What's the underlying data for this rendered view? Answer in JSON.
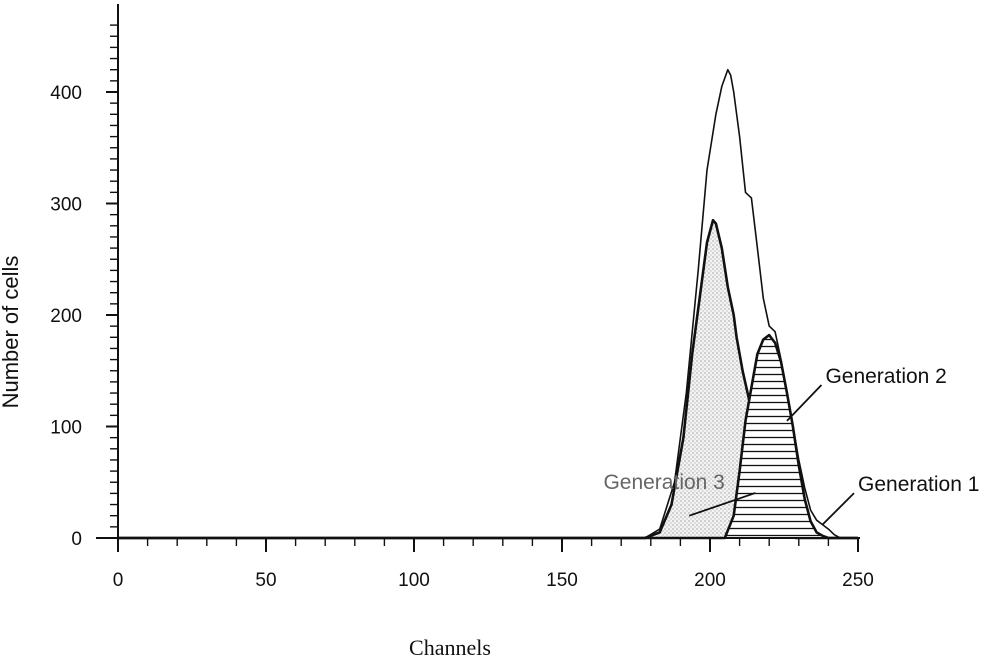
{
  "chart_data": {
    "type": "area",
    "xlabel": "Channels",
    "ylabel": "Number of cells",
    "xlim": [
      0,
      250
    ],
    "ylim": [
      0,
      470
    ],
    "x_ticks": [
      0,
      50,
      100,
      150,
      200,
      250
    ],
    "y_ticks": [
      0,
      100,
      200,
      300,
      400
    ],
    "grid": false,
    "series": [
      {
        "name": "Generation 1",
        "line_width": "thin",
        "x": [
          0,
          150,
          178,
          183,
          188,
          192,
          196,
          199,
          202,
          204,
          206,
          207,
          208,
          210,
          212,
          214,
          216,
          218,
          220,
          222,
          224,
          226,
          228,
          230,
          232,
          234,
          236,
          238,
          240,
          242,
          244,
          246,
          250
        ],
        "y": [
          0,
          0,
          0,
          8,
          50,
          130,
          240,
          330,
          380,
          405,
          420,
          415,
          400,
          360,
          310,
          305,
          260,
          215,
          190,
          185,
          160,
          130,
          100,
          70,
          45,
          25,
          16,
          12,
          8,
          3,
          0,
          0,
          0
        ]
      },
      {
        "name": "Generation 3",
        "fill": "dotted",
        "x": [
          0,
          150,
          178,
          183,
          187,
          191,
          194,
          197,
          199,
          201,
          202,
          204,
          206,
          208,
          209,
          211,
          214,
          217,
          220,
          223,
          226,
          229,
          232,
          250
        ],
        "y": [
          0,
          0,
          0,
          5,
          30,
          90,
          165,
          225,
          265,
          285,
          282,
          260,
          225,
          200,
          180,
          150,
          115,
          75,
          40,
          15,
          3,
          0,
          0,
          0
        ]
      },
      {
        "name": "Generation 2",
        "fill": "horizontal-hatch",
        "x": [
          0,
          205,
          208,
          210,
          212,
          214,
          216,
          218,
          220,
          222,
          224,
          226,
          228,
          230,
          232,
          234,
          236,
          238,
          240,
          250
        ],
        "y": [
          0,
          0,
          20,
          60,
          105,
          135,
          165,
          178,
          182,
          175,
          158,
          130,
          100,
          65,
          35,
          15,
          5,
          2,
          0,
          0
        ]
      }
    ],
    "annotations": [
      {
        "text": "Generation 3",
        "x": 164,
        "y": 44,
        "arrow_to": [
          193,
          20
        ],
        "style": "light"
      },
      {
        "text": "Generation 2",
        "x": 239,
        "y": 139,
        "arrow_to": [
          226,
          105
        ]
      },
      {
        "text": "Generation 1",
        "x": 250,
        "y": 42,
        "arrow_to": [
          238,
          12
        ]
      }
    ]
  }
}
